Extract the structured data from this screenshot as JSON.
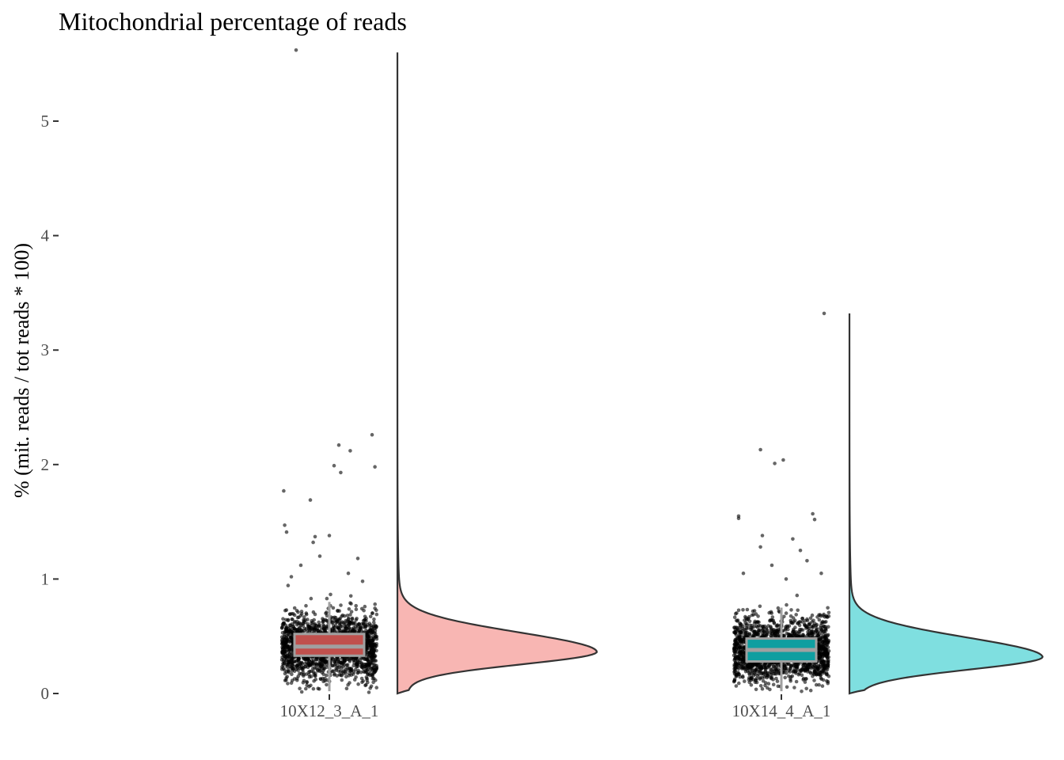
{
  "chart_data": {
    "type": "raincloud",
    "title": "Mitochondrial percentage of reads",
    "xlabel": "",
    "ylabel": "% (mit. reads / tot reads * 100)",
    "ylim": [
      0,
      5.6
    ],
    "yticks": [
      0,
      1,
      2,
      3,
      4,
      5
    ],
    "grid": false,
    "legend": "none",
    "categories": [
      "10X12_3_A_1",
      "10X14_4_A_1"
    ],
    "groups": [
      {
        "category": "10X12_3_A_1",
        "color": "#f8b6b3",
        "box_fill": "#c0504d",
        "box": {
          "q1": 0.33,
          "median": 0.41,
          "q3": 0.52,
          "whisker_low": 0.02,
          "whisker_high": 0.8
        },
        "density_max": 5.6,
        "outliers": [
          [
            -0.35,
            5.62
          ],
          [
            0.45,
            2.26
          ],
          [
            0.1,
            2.17
          ],
          [
            0.22,
            2.12
          ],
          [
            0.05,
            1.99
          ],
          [
            0.12,
            1.93
          ],
          [
            0.48,
            1.98
          ],
          [
            -0.48,
            1.77
          ],
          [
            -0.2,
            1.69
          ],
          [
            -0.47,
            1.47
          ],
          [
            -0.45,
            1.41
          ],
          [
            -0.15,
            1.37
          ],
          [
            0.0,
            1.38
          ],
          [
            -0.17,
            1.32
          ],
          [
            -0.1,
            1.2
          ],
          [
            0.3,
            1.18
          ],
          [
            -0.3,
            1.12
          ],
          [
            0.2,
            1.05
          ],
          [
            -0.4,
            1.02
          ],
          [
            0.35,
            0.98
          ]
        ]
      },
      {
        "category": "10X14_4_A_1",
        "color": "#7fdfe0",
        "box_fill": "#0f9ea0",
        "box": {
          "q1": 0.28,
          "median": 0.38,
          "q3": 0.48,
          "whisker_low": 0.02,
          "whisker_high": 0.75
        },
        "density_max": 3.32,
        "outliers": [
          [
            0.45,
            3.32
          ],
          [
            -0.22,
            2.13
          ],
          [
            -0.07,
            2.01
          ],
          [
            0.02,
            2.04
          ],
          [
            -0.45,
            1.55
          ],
          [
            -0.45,
            1.53
          ],
          [
            0.33,
            1.57
          ],
          [
            0.35,
            1.52
          ],
          [
            -0.2,
            1.38
          ],
          [
            0.12,
            1.35
          ],
          [
            -0.22,
            1.28
          ],
          [
            0.2,
            1.25
          ],
          [
            0.27,
            1.16
          ],
          [
            -0.1,
            1.12
          ],
          [
            0.42,
            1.05
          ],
          [
            -0.4,
            1.05
          ],
          [
            0.05,
            1.0
          ]
        ]
      }
    ]
  }
}
